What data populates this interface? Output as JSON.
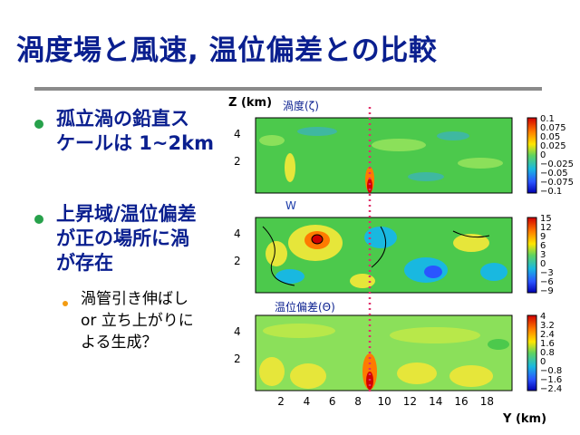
{
  "slide": {
    "title": "渦度場と風速, 温位偏差との比較",
    "bullets": [
      {
        "lines": [
          "孤立渦の鉛直ス",
          "ケールは 1~2km"
        ]
      },
      {
        "lines": [
          "上昇域/温位偏差",
          "が正の場所に渦",
          "が存在"
        ],
        "sub": [
          "渦管引き伸ばし",
          "or 立ち上がりに",
          "よる生成？"
        ]
      }
    ]
  },
  "figure": {
    "z_label": "Z (km)",
    "y_label": "Y (km)",
    "panels": [
      {
        "label": "渦度(ζ)",
        "colorbar": [
          "0.1",
          "0.075",
          "0.05",
          "0.025",
          "0",
          "−0.025",
          "−0.05",
          "−0.075",
          "−0.1"
        ]
      },
      {
        "label": "W",
        "colorbar": [
          "15",
          "12",
          "9",
          "6",
          "3",
          "0",
          "−3",
          "−6",
          "−9"
        ]
      },
      {
        "label": "温位偏差(Θ)",
        "colorbar": [
          "4",
          "3.2",
          "2.4",
          "1.6",
          "0.8",
          "0",
          "−0.8",
          "−1.6",
          "−2.4"
        ]
      }
    ],
    "z_ticks": [
      "4",
      "2"
    ],
    "y_ticks": [
      "2",
      "4",
      "6",
      "8",
      "10",
      "12",
      "14",
      "16",
      "18"
    ],
    "colors": {
      "title": "#0a1f8f",
      "bullet": "#27a14b",
      "sub_bullet": "#f39c12",
      "marker_line": "#e0306a"
    }
  }
}
